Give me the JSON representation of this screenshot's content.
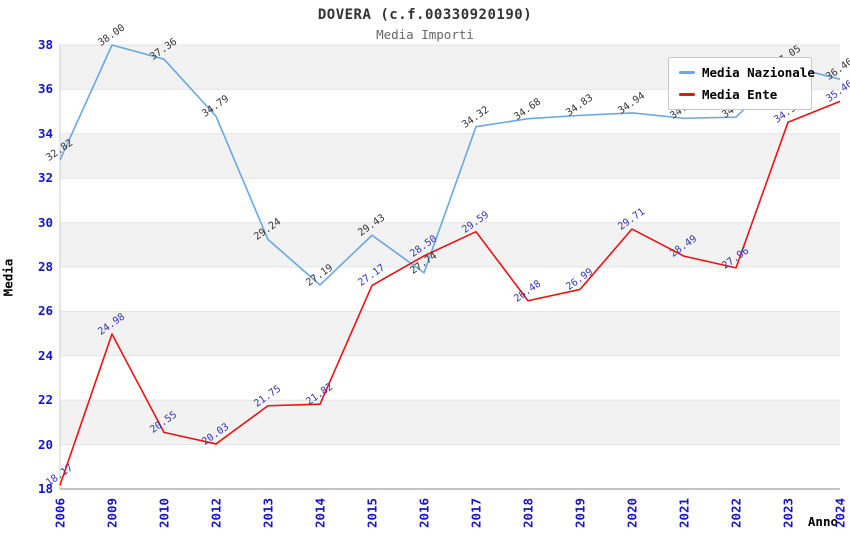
{
  "header": {
    "title": "DOVERA (c.f.00330920190)",
    "subtitle": "Media Importi"
  },
  "chart_data": {
    "type": "line",
    "title": "DOVERA (c.f.00330920190)",
    "subtitle": "Media Importi",
    "xlabel": "Anno",
    "ylabel": "Media",
    "ylim": [
      18,
      38
    ],
    "ytick_step": 2,
    "grid": true,
    "alternating_bands": true,
    "legend_position": "top-right",
    "categories": [
      "2006",
      "2009",
      "2010",
      "2012",
      "2013",
      "2014",
      "2015",
      "2016",
      "2017",
      "2018",
      "2019",
      "2020",
      "2021",
      "2022",
      "2023",
      "2024"
    ],
    "series": [
      {
        "name": "Media Nazionale",
        "color": "#69a8e2",
        "label_color": "#333333",
        "values": [
          32.82,
          38.0,
          37.36,
          34.79,
          29.24,
          27.19,
          29.43,
          27.74,
          34.32,
          34.68,
          34.83,
          34.94,
          34.7,
          34.75,
          37.05,
          36.46
        ]
      },
      {
        "name": "Media Ente",
        "color": "#ee1111",
        "label_color": "#3333b4",
        "values": [
          18.17,
          24.98,
          20.55,
          20.03,
          21.75,
          21.82,
          27.17,
          28.5,
          29.59,
          26.48,
          26.99,
          29.71,
          28.49,
          27.96,
          34.52,
          35.46
        ]
      }
    ],
    "colors": {
      "tick_label": "#1414cc",
      "band_gray": "#f2f2f2",
      "gridline": "#e4e4e4",
      "axis_left": "#cccccc",
      "axis_bottom": "#888888",
      "title_text": "#333333",
      "subtitle_text": "#666666"
    }
  }
}
